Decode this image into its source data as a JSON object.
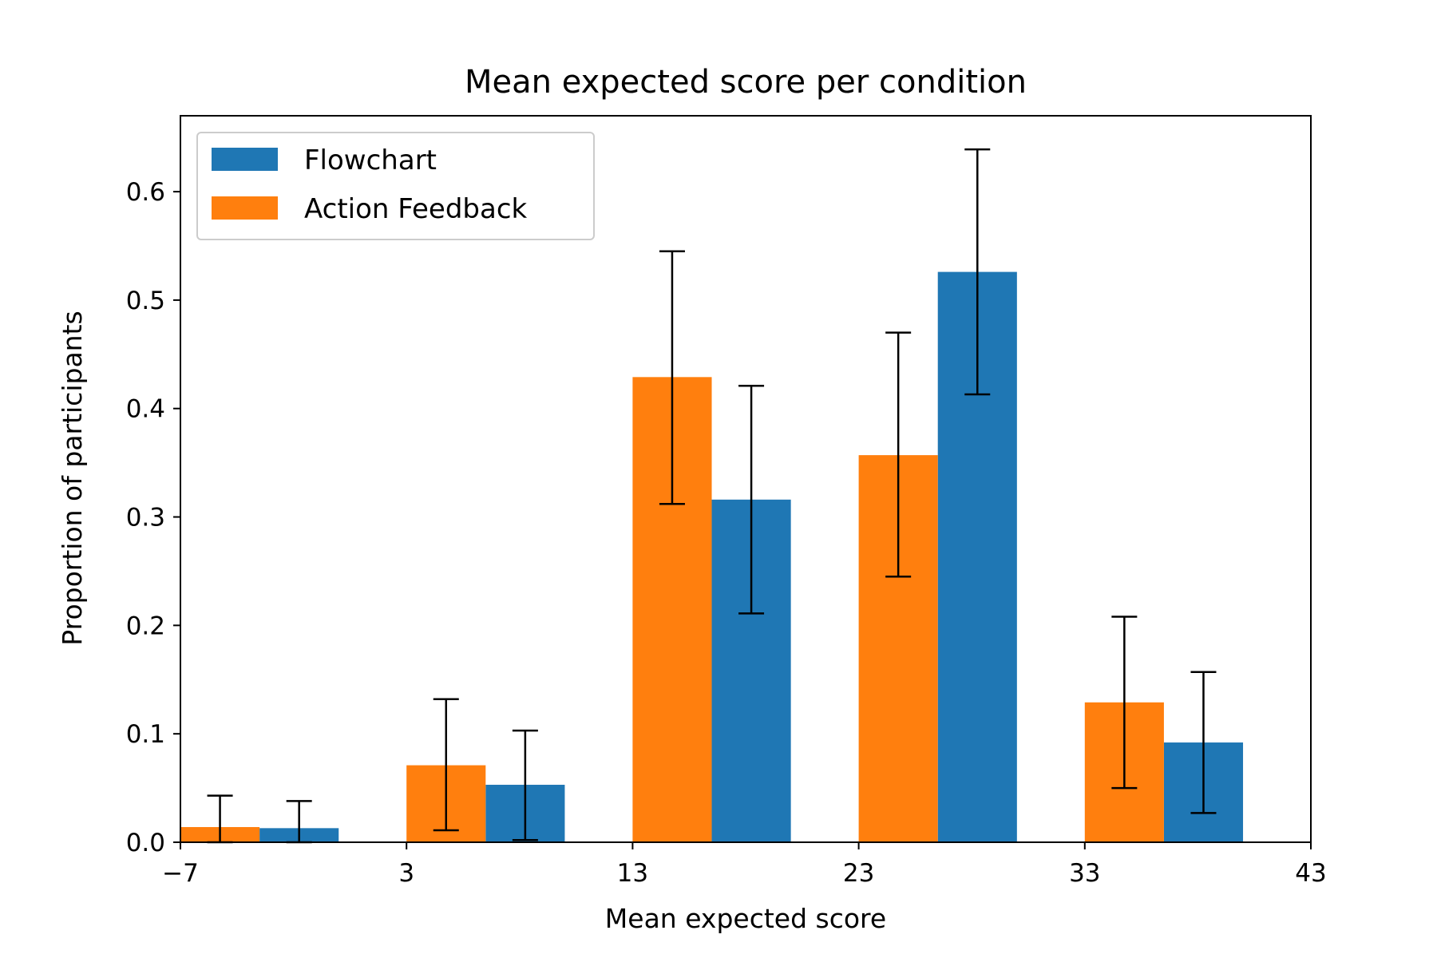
{
  "chart_data": {
    "type": "bar",
    "title": "Mean expected score per condition",
    "xlabel": "Mean expected score",
    "ylabel": "Proportion of participants",
    "xlim": [
      -7,
      43
    ],
    "ylim": [
      0,
      0.67
    ],
    "xticks": [
      -7,
      3,
      13,
      23,
      33,
      43
    ],
    "xtick_labels": [
      "−7",
      "3",
      "13",
      "23",
      "33",
      "43"
    ],
    "yticks": [
      0.0,
      0.1,
      0.2,
      0.3,
      0.4,
      0.5,
      0.6
    ],
    "ytick_labels": [
      "0.0",
      "0.1",
      "0.2",
      "0.3",
      "0.4",
      "0.5",
      "0.6"
    ],
    "grid": false,
    "legend_position": "top-left",
    "series": [
      {
        "name": "Flowchart",
        "color": "#1f77b4",
        "x": [
          -1.75,
          8.25,
          18.25,
          28.25,
          38.25
        ],
        "values": [
          0.013,
          0.053,
          0.316,
          0.526,
          0.092
        ],
        "error_low": [
          0.0,
          0.002,
          0.211,
          0.413,
          0.027
        ],
        "error_high": [
          0.038,
          0.103,
          0.421,
          0.639,
          0.157
        ]
      },
      {
        "name": "Action Feedback",
        "color": "#ff7f0e",
        "x": [
          -5.25,
          4.75,
          14.75,
          24.75,
          34.75
        ],
        "values": [
          0.014,
          0.071,
          0.429,
          0.357,
          0.129
        ],
        "error_low": [
          0.0,
          0.011,
          0.312,
          0.245,
          0.05
        ],
        "error_high": [
          0.043,
          0.132,
          0.545,
          0.47,
          0.208
        ]
      }
    ],
    "bar_width": 3.5
  }
}
